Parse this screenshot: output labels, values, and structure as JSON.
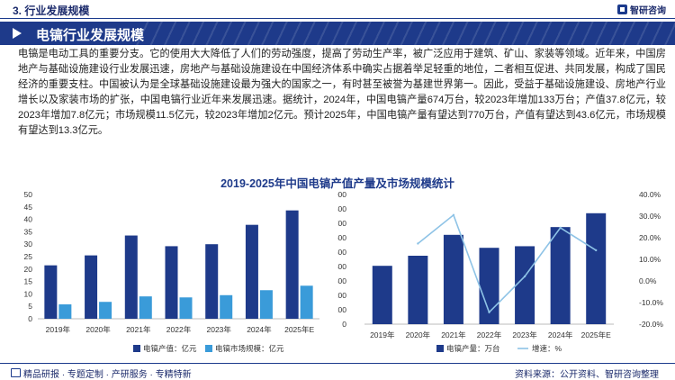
{
  "header": {
    "section": "3. 行业发展规模",
    "logo_text": "智研咨询",
    "title": "电镐行业发展规模"
  },
  "paragraph": "电镐是电动工具的重要分支。它的使用大大降低了人们的劳动强度，提高了劳动生产率，被广泛应用于建筑、矿山、家装等领域。近年来，中国房地产与基础设施建设行业发展迅速，房地产与基础设施建设在中国经济体系中确实占据着举足轻重的地位，二者相互促进、共同发展，构成了国民经济的重要支柱。中国被认为是全球基础设施建设最为强大的国家之一，有时甚至被誉为基建世界第一。因此，受益于基础设施建设、房地产行业增长以及家装市场的扩张，中国电镐行业近年来发展迅速。据统计，2024年，中国电镐产量674万台，较2023年增加133万台；产值37.8亿元，较2023年增加7.8亿元；市场规模11.5亿元，较2023年增加2亿元。预计2025年，中国电镐产量有望达到770万台，产值有望达到43.6亿元，市场规模有望达到13.3亿元。",
  "chart_title": "2019-2025年中国电镐产值产量及市场规模统计",
  "chart_data": [
    {
      "type": "bar",
      "categories": [
        "2019年",
        "2020年",
        "2021年",
        "2022年",
        "2023年",
        "2024年",
        "2025年E"
      ],
      "series": [
        {
          "name": "电镐产值：亿元",
          "values": [
            21.5,
            25.5,
            33.5,
            29.2,
            30.0,
            37.8,
            43.6
          ],
          "color": "#1e3a8a"
        },
        {
          "name": "电镐市场规模：亿元",
          "values": [
            5.8,
            6.8,
            9.0,
            8.6,
            9.5,
            11.5,
            13.3
          ],
          "color": "#3a9bd9"
        }
      ],
      "ylim": [
        0,
        50
      ],
      "yticks": [
        "0",
        "5",
        "10",
        "15",
        "20",
        "25",
        "30",
        "35",
        "40",
        "45",
        "50"
      ],
      "legend": "bottom"
    },
    {
      "type": "bar+line",
      "categories": [
        "2019年",
        "2020年",
        "2021年",
        "2022年",
        "2023年",
        "2024年",
        "2025年E"
      ],
      "series": [
        {
          "name": "电镐产量：万台",
          "values": [
            405,
            475,
            620,
            530,
            541,
            674,
            770
          ],
          "color": "#1e3a8a",
          "axis": "left"
        },
        {
          "name": "增速：%",
          "values": [
            null,
            17.3,
            30.5,
            -14.5,
            2.1,
            24.6,
            14.2
          ],
          "color": "#8ec3e6",
          "axis": "right",
          "kind": "line"
        }
      ],
      "ylim": [
        0,
        900
      ],
      "yticks": [
        "0",
        "100",
        "200",
        "300",
        "400",
        "500",
        "600",
        "700",
        "800",
        "900"
      ],
      "y2lim": [
        -20,
        40
      ],
      "y2ticks": [
        "-20.0%",
        "-10.0%",
        "0.0%",
        "10.0%",
        "20.0%",
        "30.0%",
        "40.0%"
      ],
      "legend": "bottom"
    }
  ],
  "footer": {
    "left": "精品研报 · 专题定制 · 产研服务 · 专精特新",
    "source": "资料来源：公开资料、智研咨询整理"
  }
}
